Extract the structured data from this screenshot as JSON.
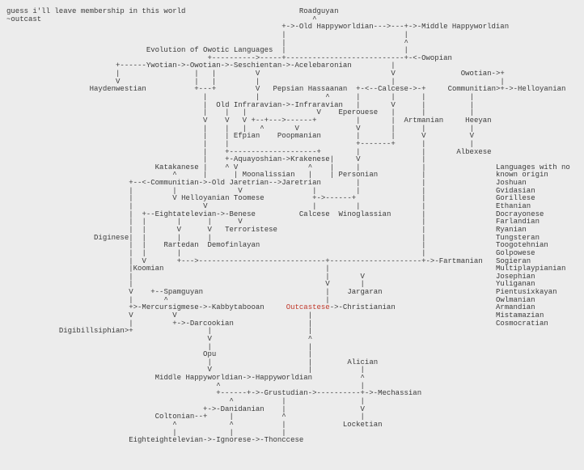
{
  "page": {
    "background_color": "#ececec",
    "text_color": "#3a3a3a"
  },
  "header_note": {
    "line1": "guess i'll leave membership in this world",
    "line2": "~outcast"
  },
  "diagram": {
    "title": "Evolution of Owotic Languages",
    "highlight": {
      "word": "Outcastese",
      "color": "#c0392b"
    },
    "unknown_origin_list": {
      "heading_line1": "Languages with no",
      "heading_line2": "known origin",
      "items": [
        "Joshuan",
        "Gvidasian",
        "Gorillese",
        "Ethanian",
        "Docrayonese",
        "Farlandian",
        "Ryanian",
        "Tungsteran",
        "Toogotehnian",
        "Golpowese",
        "Sogieran",
        "Multiplaypianian",
        "Josephian",
        "Yuliganan",
        "Pientusixkayan",
        "Owlmanian",
        "Armandian",
        "Mistamazian",
        "Cosmocratian"
      ]
    },
    "lines": [
      [
        [
          0,
          "guess i'll leave membership in this world"
        ],
        [
          67,
          "Roadguyan"
        ]
      ],
      [
        [
          0,
          "~outcast"
        ],
        [
          70,
          "^"
        ]
      ],
      [
        [
          63,
          "+->-Old Happyworldian--->---+->-Middle Happyworldian"
        ]
      ],
      [
        [
          63,
          "|"
        ],
        [
          91,
          "|"
        ]
      ],
      [
        [
          63,
          "|"
        ],
        [
          91,
          "^"
        ]
      ],
      [
        [
          32,
          "Evolution of Owotic Languages"
        ],
        [
          63,
          "|"
        ],
        [
          91,
          "|"
        ]
      ],
      [
        [
          46,
          "+---------->-----+---------------------------+-<-Owopian"
        ]
      ],
      [
        [
          25,
          "+------Ywotian->-Owotian->-Seschientan->-Acelebaronian"
        ],
        [
          88,
          "|"
        ]
      ],
      [
        [
          25,
          "|"
        ],
        [
          43,
          "|"
        ],
        [
          47,
          "|"
        ],
        [
          57,
          "V"
        ],
        [
          88,
          "V"
        ],
        [
          104,
          "Owotian->+"
        ]
      ],
      [
        [
          25,
          "V"
        ],
        [
          43,
          "|"
        ],
        [
          47,
          "|"
        ],
        [
          57,
          "|"
        ],
        [
          88,
          "|"
        ],
        [
          113,
          "|"
        ]
      ],
      [
        [
          19,
          "Haydenwestian"
        ],
        [
          43,
          "+---+"
        ],
        [
          57,
          "V"
        ],
        [
          61,
          "Pepsian"
        ],
        [
          69,
          "Hassaanan"
        ],
        [
          80,
          "+-<--Calcese->-+"
        ],
        [
          101,
          "Communitian>+->-Helloyanian"
        ]
      ],
      [
        [
          45,
          "|"
        ],
        [
          57,
          "|"
        ],
        [
          73,
          "^"
        ],
        [
          80,
          "|"
        ],
        [
          88,
          "|"
        ],
        [
          95,
          "|"
        ],
        [
          106,
          "|"
        ]
      ],
      [
        [
          45,
          "|"
        ],
        [
          48,
          "Old Infraravian->-Infraravian"
        ],
        [
          80,
          "|"
        ],
        [
          88,
          "V"
        ],
        [
          95,
          "|"
        ],
        [
          106,
          "|"
        ]
      ],
      [
        [
          45,
          "|"
        ],
        [
          50,
          "|"
        ],
        [
          54,
          "|"
        ],
        [
          71,
          "V"
        ],
        [
          76,
          "Eperouese"
        ],
        [
          88,
          "|"
        ],
        [
          95,
          "|"
        ],
        [
          106,
          "|"
        ]
      ],
      [
        [
          45,
          "V"
        ],
        [
          50,
          "V"
        ],
        [
          54,
          "V"
        ],
        [
          56,
          "+--+--->------+"
        ],
        [
          80,
          "|"
        ],
        [
          88,
          "|"
        ],
        [
          91,
          "Artmanian"
        ],
        [
          105,
          "Heeyan"
        ]
      ],
      [
        [
          45,
          "|"
        ],
        [
          50,
          "|"
        ],
        [
          54,
          "|"
        ],
        [
          58,
          "^"
        ],
        [
          66,
          "V"
        ],
        [
          80,
          "V"
        ],
        [
          88,
          "|"
        ],
        [
          95,
          "|"
        ],
        [
          106,
          "|"
        ]
      ],
      [
        [
          45,
          "|"
        ],
        [
          50,
          "|"
        ],
        [
          52,
          "Efpian"
        ],
        [
          62,
          "Poopmanian"
        ],
        [
          80,
          "|"
        ],
        [
          88,
          "|"
        ],
        [
          95,
          "V"
        ],
        [
          106,
          "V"
        ]
      ],
      [
        [
          45,
          "|"
        ],
        [
          50,
          "|"
        ],
        [
          80,
          "+-------+"
        ],
        [
          95,
          "|"
        ],
        [
          106,
          "|"
        ]
      ],
      [
        [
          45,
          "|"
        ],
        [
          50,
          "+--------------------+"
        ],
        [
          80,
          "|"
        ],
        [
          95,
          "|"
        ],
        [
          103,
          "Albexese"
        ]
      ],
      [
        [
          45,
          "|"
        ],
        [
          50,
          "+-Aquayoshian->Krakenese|"
        ],
        [
          80,
          "V"
        ],
        [
          95,
          "|"
        ]
      ],
      [
        [
          34,
          "Katakanese"
        ],
        [
          45,
          "|"
        ],
        [
          50,
          "^"
        ],
        [
          52,
          "V"
        ],
        [
          69,
          "^"
        ],
        [
          74,
          "|"
        ],
        [
          80,
          "|"
        ],
        [
          95,
          "|"
        ],
        [
          112,
          "Languages with no"
        ]
      ],
      [
        [
          38,
          "^"
        ],
        [
          45,
          "|"
        ],
        [
          52,
          "|"
        ],
        [
          54,
          "Moonalissian"
        ],
        [
          69,
          "|"
        ],
        [
          74,
          "|"
        ],
        [
          76,
          "Personian"
        ],
        [
          95,
          "|"
        ],
        [
          112,
          "known origin"
        ]
      ],
      [
        [
          28,
          "+--<-Communitian->-Old Jaretrian-->Jaretrian"
        ],
        [
          80,
          "|"
        ],
        [
          95,
          "|"
        ],
        [
          112,
          "Joshuan"
        ]
      ],
      [
        [
          28,
          "|"
        ],
        [
          38,
          "|"
        ],
        [
          53,
          "V"
        ],
        [
          70,
          "|"
        ],
        [
          80,
          "|"
        ],
        [
          95,
          "|"
        ],
        [
          112,
          "Gvidasian"
        ]
      ],
      [
        [
          28,
          "|"
        ],
        [
          38,
          "V"
        ],
        [
          40,
          "Helloyanian"
        ],
        [
          52,
          "Toomese"
        ],
        [
          70,
          "+->------+"
        ],
        [
          95,
          "|"
        ],
        [
          112,
          "Gorillese"
        ]
      ],
      [
        [
          28,
          "|"
        ],
        [
          45,
          "V"
        ],
        [
          70,
          "|"
        ],
        [
          80,
          "|"
        ],
        [
          95,
          "|"
        ],
        [
          112,
          "Ethanian"
        ]
      ],
      [
        [
          28,
          "|"
        ],
        [
          31,
          "+--Eightatelevian->-Benese"
        ],
        [
          67,
          "Calcese"
        ],
        [
          76,
          "Winoglassian"
        ],
        [
          95,
          "|"
        ],
        [
          112,
          "Docrayonese"
        ]
      ],
      [
        [
          28,
          "|"
        ],
        [
          31,
          "|"
        ],
        [
          39,
          "|"
        ],
        [
          46,
          "|"
        ],
        [
          53,
          "V"
        ],
        [
          95,
          "|"
        ],
        [
          112,
          "Farlandian"
        ]
      ],
      [
        [
          28,
          "|"
        ],
        [
          31,
          "|"
        ],
        [
          39,
          "V"
        ],
        [
          46,
          "V"
        ],
        [
          50,
          "Terroristese"
        ],
        [
          95,
          "|"
        ],
        [
          112,
          "Ryanian"
        ]
      ],
      [
        [
          20,
          "Diginese|"
        ],
        [
          31,
          "|"
        ],
        [
          39,
          "|"
        ],
        [
          46,
          "|"
        ],
        [
          95,
          "|"
        ],
        [
          112,
          "Tungsteran"
        ]
      ],
      [
        [
          28,
          "|"
        ],
        [
          31,
          "|"
        ],
        [
          36,
          "Rartedan"
        ],
        [
          46,
          "Demofinlayan"
        ],
        [
          95,
          "|"
        ],
        [
          112,
          "Toogotehnian"
        ]
      ],
      [
        [
          28,
          "|"
        ],
        [
          31,
          "|"
        ],
        [
          39,
          "|"
        ],
        [
          95,
          "|"
        ],
        [
          112,
          "Golpowese"
        ]
      ],
      [
        [
          28,
          "|"
        ],
        [
          31,
          "V"
        ],
        [
          39,
          "+--->-----------------------------+---------------------+->-Fartmanian"
        ],
        [
          112,
          "Sogieran"
        ]
      ],
      [
        [
          28,
          "|Koomian"
        ],
        [
          73,
          "|"
        ],
        [
          112,
          "Multiplaypianian"
        ]
      ],
      [
        [
          28,
          "|"
        ],
        [
          73,
          "|"
        ],
        [
          81,
          "V"
        ],
        [
          112,
          "Josephian"
        ]
      ],
      [
        [
          28,
          "|"
        ],
        [
          73,
          "V"
        ],
        [
          81,
          "|"
        ],
        [
          112,
          "Yuliganan"
        ]
      ],
      [
        [
          28,
          "V"
        ],
        [
          33,
          "+--Spamguyan"
        ],
        [
          73,
          "|"
        ],
        [
          78,
          "Jargaran"
        ],
        [
          112,
          "Pientusixkayan"
        ]
      ],
      [
        [
          28,
          "|"
        ],
        [
          36,
          "^"
        ],
        [
          73,
          "|"
        ],
        [
          112,
          "Owlmanian"
        ]
      ],
      [
        [
          28,
          "+>-Mercursigmese->-Kabbytabooan"
        ],
        [
          64,
          "Outcastese",
          "red"
        ],
        [
          74,
          "->-Christianian"
        ],
        [
          112,
          "Armandian"
        ]
      ],
      [
        [
          28,
          "V"
        ],
        [
          38,
          "V"
        ],
        [
          69,
          "|"
        ],
        [
          112,
          "Mistamazian"
        ]
      ],
      [
        [
          28,
          "|"
        ],
        [
          38,
          "+->-Darcookian"
        ],
        [
          69,
          "|"
        ],
        [
          112,
          "Cosmocratian"
        ]
      ],
      [
        [
          12,
          "Digibillsiphian>+"
        ],
        [
          46,
          "|"
        ],
        [
          69,
          "|"
        ]
      ],
      [
        [
          46,
          "V"
        ],
        [
          69,
          "^"
        ]
      ],
      [
        [
          46,
          "|"
        ],
        [
          69,
          "|"
        ]
      ],
      [
        [
          45,
          "Opu"
        ],
        [
          69,
          "|"
        ]
      ],
      [
        [
          46,
          "|"
        ],
        [
          69,
          "|"
        ],
        [
          78,
          "Alician"
        ]
      ],
      [
        [
          46,
          "V"
        ],
        [
          69,
          "|"
        ],
        [
          81,
          "|"
        ]
      ],
      [
        [
          34,
          "Middle Happyworldian->-Happyworldian"
        ],
        [
          81,
          "^"
        ]
      ],
      [
        [
          48,
          "^"
        ],
        [
          81,
          "|"
        ]
      ],
      [
        [
          48,
          "+------+->-Grustudian->----------+->-Mechassian"
        ]
      ],
      [
        [
          51,
          "^"
        ],
        [
          63,
          "|"
        ],
        [
          81,
          "|"
        ]
      ],
      [
        [
          45,
          "+->-Danidanian"
        ],
        [
          63,
          "|"
        ],
        [
          81,
          "V"
        ]
      ],
      [
        [
          34,
          "Coltonian--+"
        ],
        [
          51,
          "|"
        ],
        [
          63,
          "^"
        ],
        [
          81,
          "|"
        ]
      ],
      [
        [
          38,
          "^"
        ],
        [
          51,
          "^"
        ],
        [
          63,
          "|"
        ],
        [
          77,
          "Locketian"
        ]
      ],
      [
        [
          38,
          "|"
        ],
        [
          51,
          "|"
        ],
        [
          63,
          "|"
        ]
      ],
      [
        [
          28,
          "Eighteightelevian->-Ignorese->-Thonccese"
        ]
      ]
    ]
  }
}
